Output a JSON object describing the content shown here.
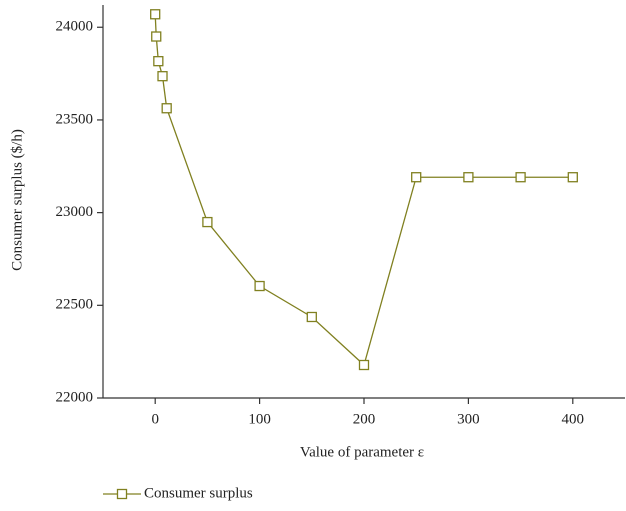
{
  "chart_data": {
    "type": "line",
    "x_label": "Value of parameter ε",
    "y_label": "Consumer surplus ($/h)",
    "x": [
      0,
      1,
      3,
      7,
      11,
      50,
      100,
      150,
      200,
      250,
      300,
      350,
      400
    ],
    "series": [
      {
        "name": "Consumer surplus",
        "color": "#808020",
        "values": [
          24070,
          23950,
          23817,
          23736,
          23563,
          22949,
          22604,
          22437,
          22178,
          23191,
          23191,
          23191,
          23191
        ]
      }
    ],
    "xlim": [
      -50,
      450
    ],
    "xticks": [
      0,
      100,
      200,
      300,
      400
    ],
    "ylim": [
      22000,
      24120
    ],
    "yticks": [
      22000,
      22500,
      23000,
      23500,
      24000
    ],
    "legend": "bottom-left"
  }
}
